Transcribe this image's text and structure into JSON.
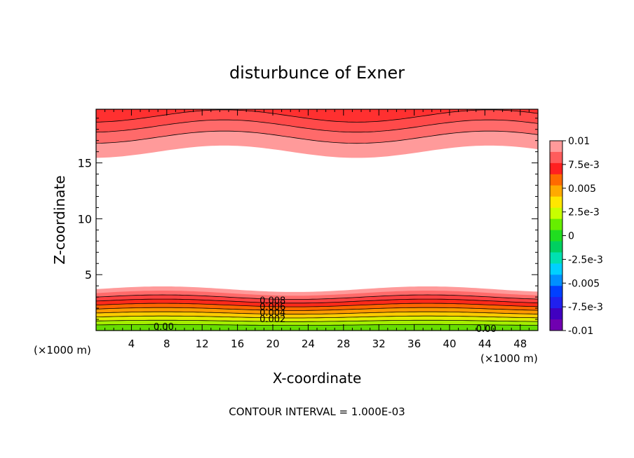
{
  "chart_data": {
    "type": "contour",
    "title": "disturbunce of Exner",
    "xlabel": "X-coordinate",
    "ylabel": "Z-coordinate",
    "x_unit_left": "(×1000 m)",
    "x_unit_right": "(×1000 m)",
    "footer": "CONTOUR INTERVAL = 1.000E-03",
    "xlim": [
      0,
      50
    ],
    "ylim": [
      0,
      19.8
    ],
    "x_ticks": [
      4,
      8,
      12,
      16,
      20,
      24,
      28,
      32,
      36,
      40,
      44,
      48
    ],
    "x_tick_labels": [
      "4",
      "8",
      "12",
      "16",
      "20",
      "24",
      "28",
      "32",
      "36",
      "40",
      "44",
      "48"
    ],
    "y_ticks": [
      5,
      10,
      15
    ],
    "y_tick_labels": [
      "5",
      "10",
      "15"
    ],
    "contour_labels": [
      {
        "text": "0.008",
        "x": 18.5,
        "y": 2.6
      },
      {
        "text": "0.006",
        "x": 18.5,
        "y": 2.05
      },
      {
        "text": "0.004",
        "x": 18.5,
        "y": 1.5
      },
      {
        "text": "0.002",
        "x": 18.5,
        "y": 0.95
      },
      {
        "text": "0.00",
        "x": 6.5,
        "y": 0.25
      },
      {
        "text": "0.00",
        "x": 43.0,
        "y": 0.05
      }
    ],
    "colorbar": {
      "labels": [
        "0.01",
        "7.5e-3",
        "0.005",
        "2.5e-3",
        "0",
        "-2.5e-3",
        "-0.005",
        "-7.5e-3",
        "-0.01"
      ],
      "colors": [
        "#ff9a9a",
        "#ff5c5c",
        "#ff2020",
        "#ff6a00",
        "#ffaa00",
        "#ffe600",
        "#c8ff00",
        "#66ee00",
        "#20dd20",
        "#00d060",
        "#00e0b0",
        "#00d0ff",
        "#0090ff",
        "#0040ff",
        "#2020ee",
        "#4000c0",
        "#7000b0"
      ]
    },
    "band_colors": [
      "#66dd00",
      "#a6ee00",
      "#ddee00",
      "#ffcc00",
      "#ff9900",
      "#ff6600",
      "#ff2a1a",
      "#ff4040",
      "#ff6a6a",
      "#ff9a9a"
    ]
  }
}
